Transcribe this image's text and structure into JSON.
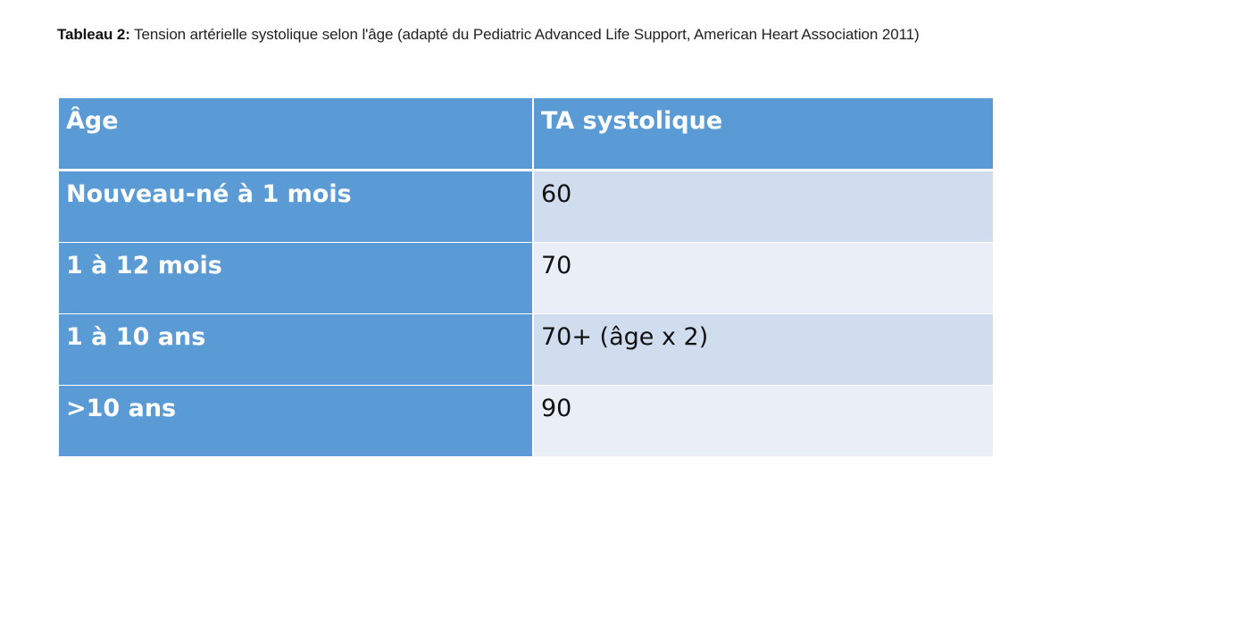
{
  "caption": {
    "label": "Tableau 2:",
    "text": " Tension artérielle systolique selon l'âge (adapté du Pediatric Advanced Life Support, American Heart Association 2011)"
  },
  "table": {
    "headers": {
      "age": "Âge",
      "ta": "TA systolique"
    },
    "rows": [
      {
        "age": "Nouveau-né à 1 mois",
        "ta": "60"
      },
      {
        "age": "1 à 12 mois",
        "ta": "70"
      },
      {
        "age": "1 à 10 ans",
        "ta": "70+ (âge x 2)"
      },
      {
        "age": ">10 ans",
        "ta": "90"
      }
    ]
  },
  "colors": {
    "header_blue": "#5b9bd5",
    "row_dark": "#d0ddef",
    "row_light": "#e9eef7"
  }
}
